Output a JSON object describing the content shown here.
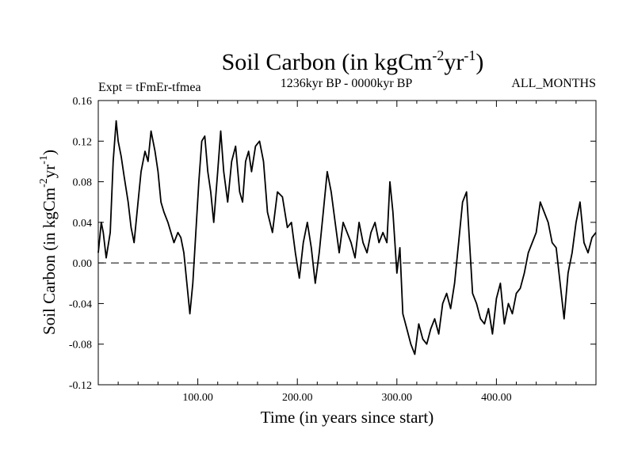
{
  "chart_data": {
    "type": "line",
    "title": {
      "main": "Soil Carbon (in kgCm",
      "sup1": "-2",
      "mid": "yr",
      "sup2": "-1",
      "end": ")"
    },
    "subtitle_left": "Expt = tFmEr-tfmea",
    "subtitle_center": "1236kyr BP - 0000kyr BP",
    "subtitle_right": "ALL_MONTHS",
    "xlabel": "Time (in years since start)",
    "ylabel": {
      "main": "Soil Carbon (in kgCm",
      "sup1": "-2",
      "mid": "yr",
      "sup2": "-1",
      "end": ")"
    },
    "xlim": [
      0,
      500
    ],
    "ylim": [
      -0.12,
      0.16
    ],
    "x_ticks": [
      100,
      200,
      300,
      400
    ],
    "x_tick_labels": [
      "100.00",
      "200.00",
      "300.00",
      "400.00"
    ],
    "y_ticks": [
      -0.12,
      -0.08,
      -0.04,
      0.0,
      0.04,
      0.08,
      0.12,
      0.16
    ],
    "y_tick_labels": [
      "-0.12",
      "-0.08",
      "-0.04",
      "0.00",
      "0.04",
      "0.08",
      "0.12",
      "0.16"
    ],
    "reference_line": {
      "y": 0.0,
      "style": "dashed"
    },
    "series": [
      {
        "name": "Soil Carbon",
        "color": "#000000",
        "x": [
          0,
          3,
          5,
          8,
          12,
          15,
          18,
          20,
          23,
          26,
          30,
          33,
          36,
          40,
          43,
          47,
          50,
          53,
          57,
          60,
          63,
          66,
          70,
          73,
          76,
          80,
          83,
          86,
          89,
          92,
          95,
          98,
          101,
          104,
          107,
          110,
          113,
          116,
          120,
          123,
          126,
          130,
          134,
          138,
          142,
          145,
          148,
          151,
          154,
          158,
          162,
          166,
          170,
          175,
          180,
          185,
          190,
          194,
          198,
          202,
          206,
          210,
          214,
          218,
          222,
          226,
          230,
          234,
          238,
          242,
          246,
          250,
          254,
          258,
          262,
          266,
          270,
          274,
          278,
          282,
          286,
          290,
          293,
          296,
          300,
          303,
          306,
          310,
          314,
          318,
          322,
          326,
          330,
          334,
          338,
          342,
          346,
          350,
          354,
          358,
          362,
          366,
          370,
          373,
          376,
          380,
          384,
          388,
          392,
          396,
          400,
          404,
          408,
          412,
          416,
          420,
          424,
          428,
          432,
          436,
          440,
          444,
          448,
          452,
          456,
          460,
          464,
          468,
          472,
          476,
          480,
          484,
          488,
          492,
          496,
          500
        ],
        "values": [
          0.01,
          0.04,
          0.03,
          0.005,
          0.03,
          0.1,
          0.14,
          0.12,
          0.105,
          0.085,
          0.06,
          0.035,
          0.02,
          0.06,
          0.09,
          0.11,
          0.1,
          0.13,
          0.11,
          0.09,
          0.06,
          0.05,
          0.04,
          0.03,
          0.02,
          0.03,
          0.025,
          0.01,
          -0.02,
          -0.05,
          -0.02,
          0.03,
          0.08,
          0.12,
          0.125,
          0.09,
          0.07,
          0.04,
          0.09,
          0.13,
          0.09,
          0.06,
          0.1,
          0.115,
          0.07,
          0.06,
          0.1,
          0.11,
          0.09,
          0.115,
          0.12,
          0.1,
          0.05,
          0.03,
          0.07,
          0.065,
          0.035,
          0.04,
          0.01,
          -0.015,
          0.02,
          0.04,
          0.015,
          -0.02,
          0.01,
          0.05,
          0.09,
          0.07,
          0.04,
          0.01,
          0.04,
          0.03,
          0.02,
          0.005,
          0.04,
          0.02,
          0.01,
          0.03,
          0.04,
          0.02,
          0.03,
          0.02,
          0.08,
          0.05,
          -0.01,
          0.015,
          -0.05,
          -0.065,
          -0.08,
          -0.09,
          -0.06,
          -0.075,
          -0.08,
          -0.065,
          -0.055,
          -0.07,
          -0.04,
          -0.03,
          -0.045,
          -0.02,
          0.02,
          0.06,
          0.07,
          0.02,
          -0.03,
          -0.04,
          -0.055,
          -0.06,
          -0.045,
          -0.07,
          -0.035,
          -0.02,
          -0.06,
          -0.04,
          -0.05,
          -0.03,
          -0.025,
          -0.01,
          0.01,
          0.02,
          0.03,
          0.06,
          0.05,
          0.04,
          0.02,
          0.015,
          -0.02,
          -0.055,
          -0.01,
          0.01,
          0.04,
          0.06,
          0.02,
          0.01,
          0.025,
          0.03
        ]
      }
    ]
  }
}
